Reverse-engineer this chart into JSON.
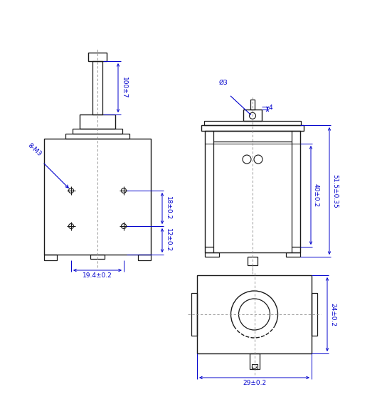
{
  "bg_color": "#ffffff",
  "line_color": "#1a1a1a",
  "dim_color": "#0000cc",
  "fig_width": 5.37,
  "fig_height": 5.54,
  "dpi": 100
}
